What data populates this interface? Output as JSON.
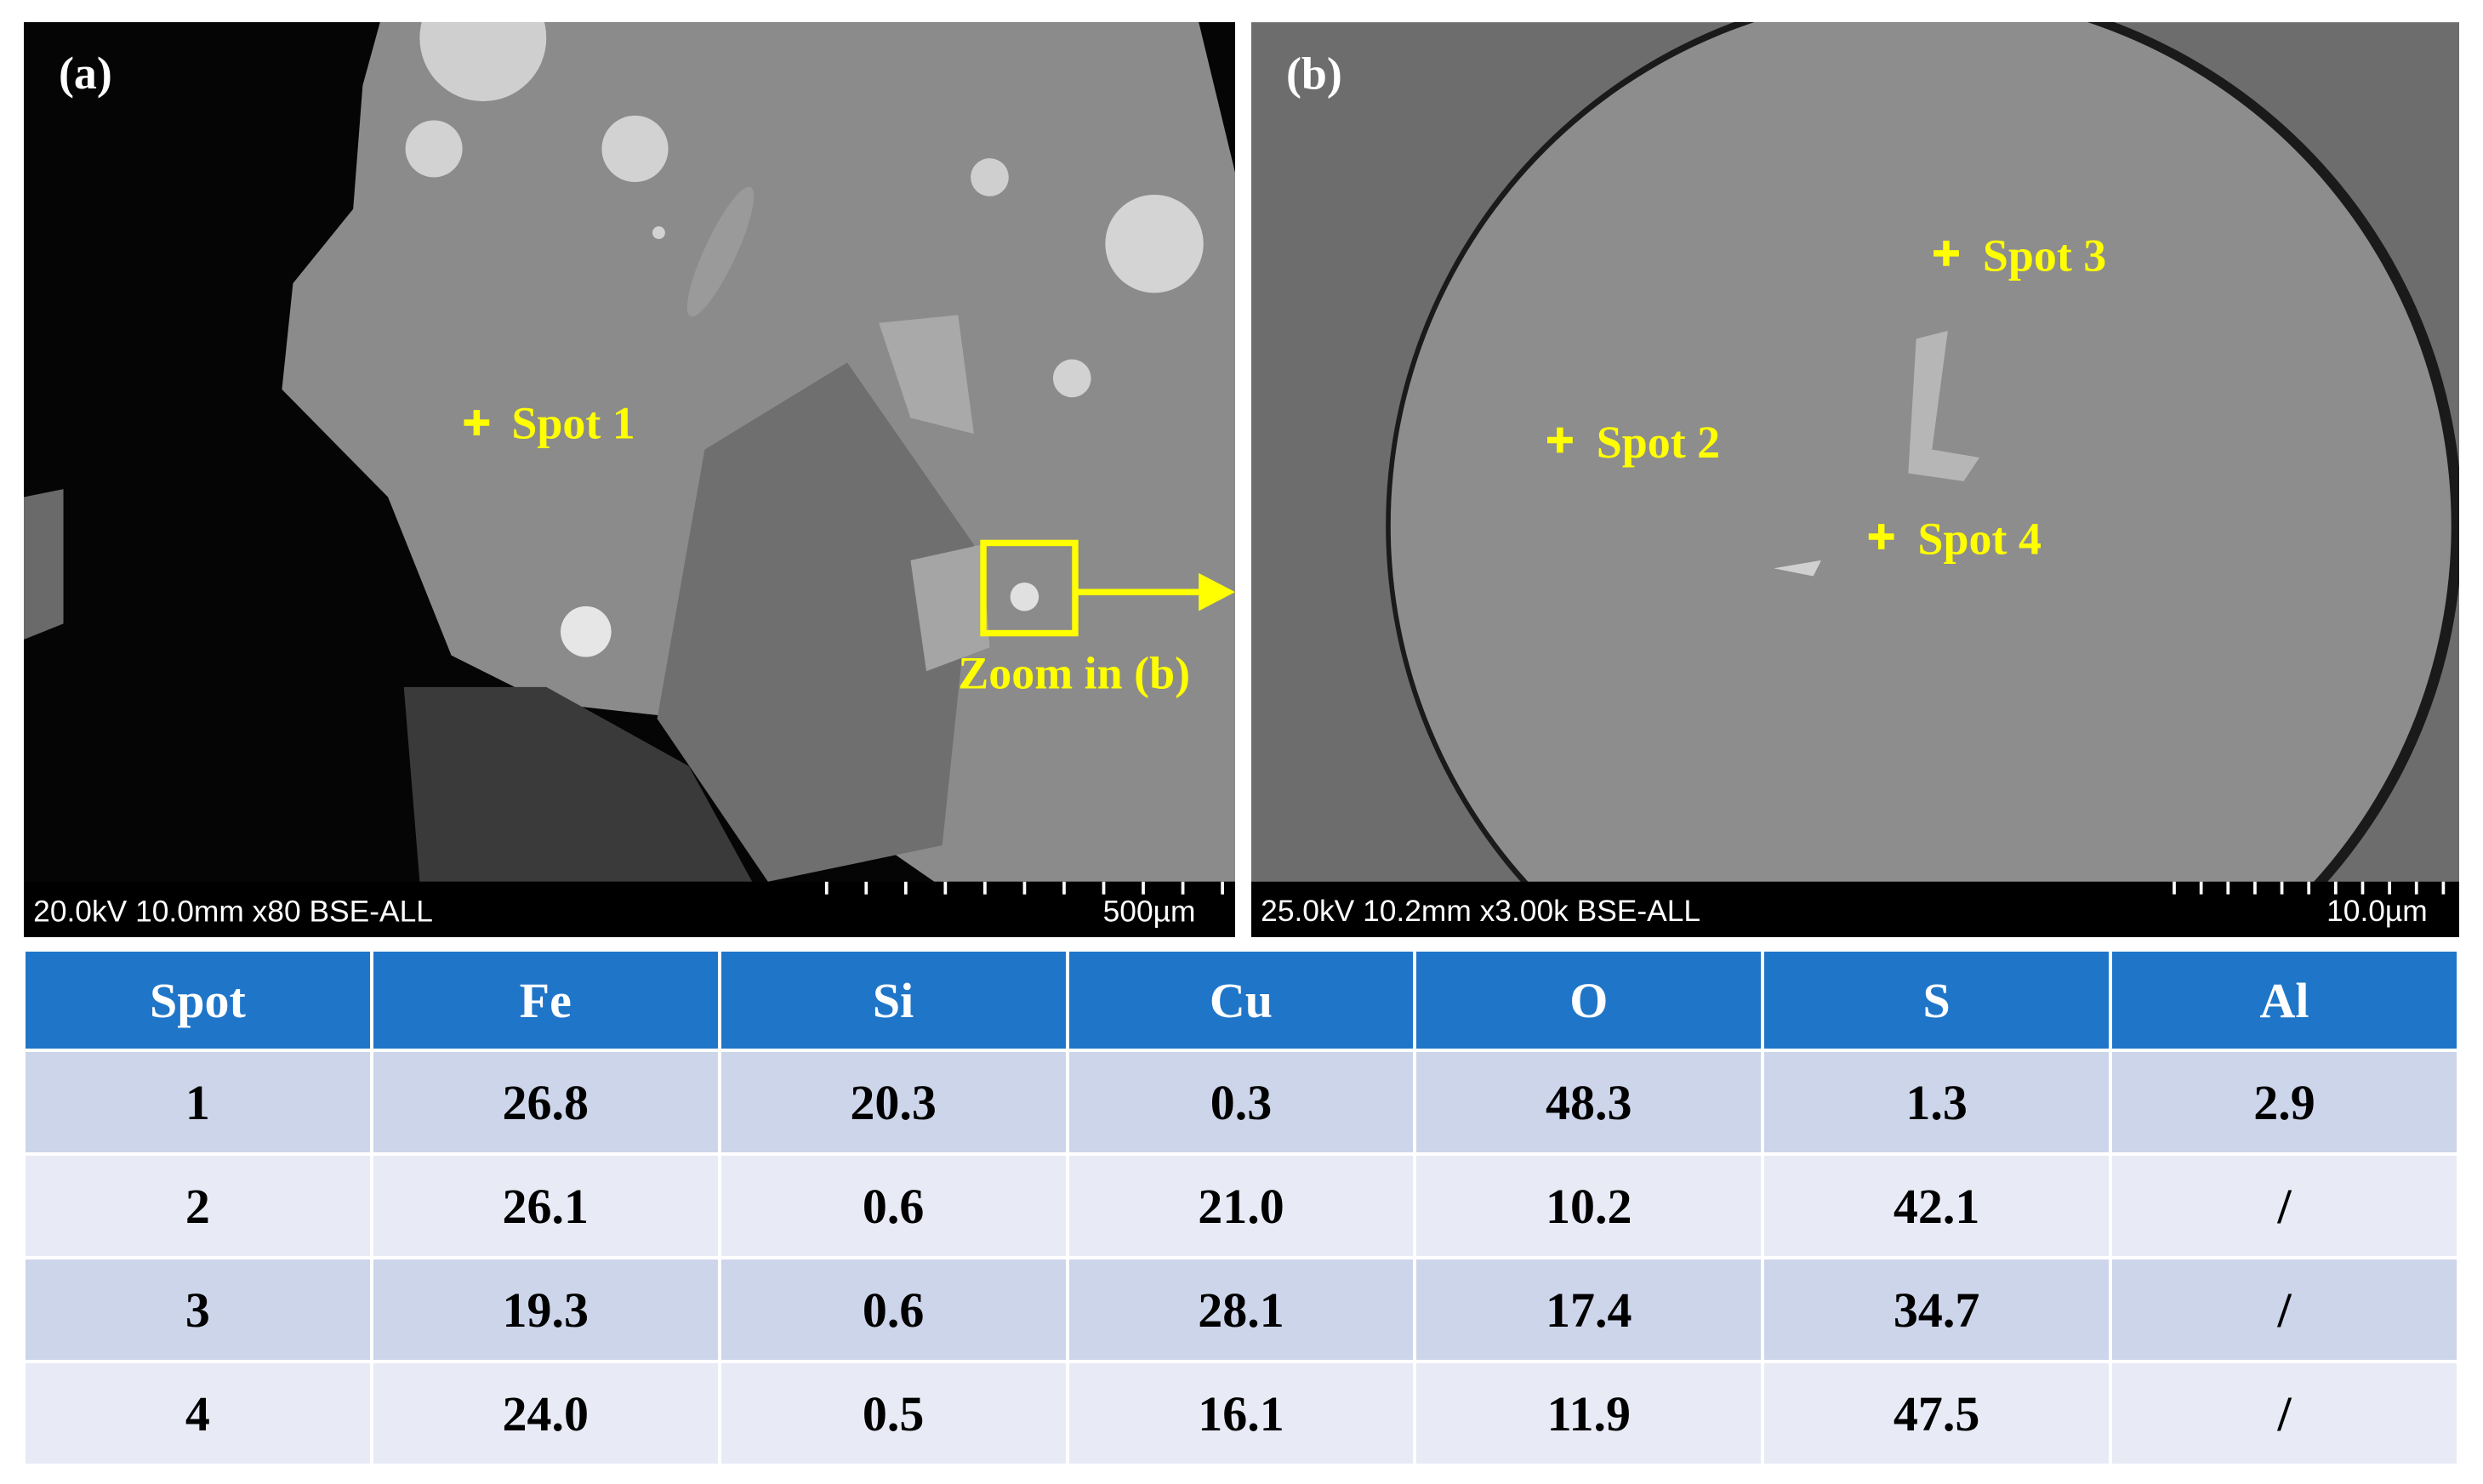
{
  "panels": [
    {
      "label": "(a)",
      "info": "20.0kV 10.0mm x80 BSE-ALL",
      "scale": "500µm",
      "annotations": [
        "Spot 1",
        "Zoom in (b)"
      ]
    },
    {
      "label": "(b)",
      "info": "25.0kV 10.2mm x3.00k BSE-ALL",
      "scale": "10.0µm",
      "annotations": [
        "Spot 2",
        "Spot 3",
        "Spot 4"
      ]
    }
  ],
  "table": {
    "header": [
      "Spot",
      "Fe",
      "Si",
      "Cu",
      "O",
      "S",
      "Al"
    ],
    "rows": [
      [
        "1",
        "26.8",
        "20.3",
        "0.3",
        "48.3",
        "1.3",
        "2.9"
      ],
      [
        "2",
        "26.1",
        "0.6",
        "21.0",
        "10.2",
        "42.1",
        "/"
      ],
      [
        "3",
        "19.3",
        "0.6",
        "28.1",
        "17.4",
        "34.7",
        "/"
      ],
      [
        "4",
        "24.0",
        "0.5",
        "16.1",
        "11.9",
        "47.5",
        "/"
      ]
    ]
  }
}
